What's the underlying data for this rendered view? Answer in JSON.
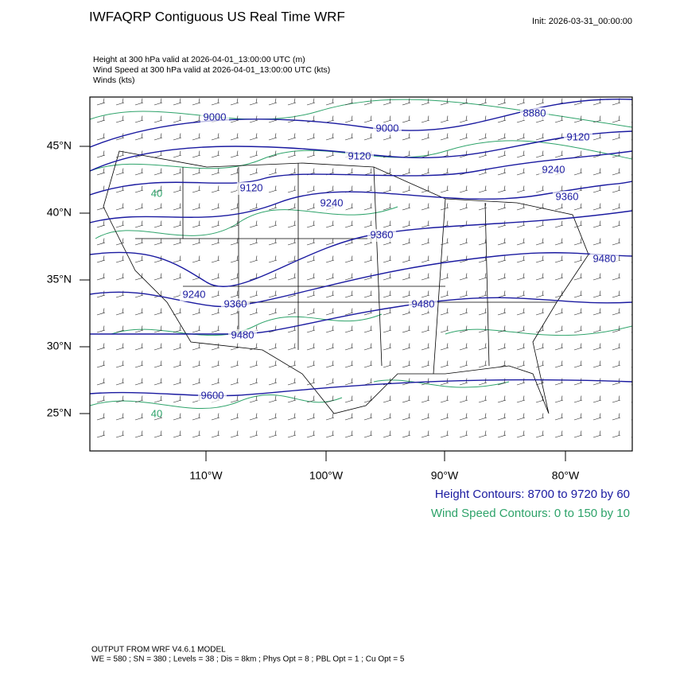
{
  "header": {
    "title": "IWFAQRP Contiguous US Real Time WRF",
    "init": "Init: 2026-03-31_00:00:00",
    "fields": [
      "Height at 300 hPa valid at 2026-04-01_13:00:00 UTC   (m)",
      "Wind Speed at 300 hPa valid at 2026-04-01_13:00:00 UTC   (kts)",
      "Winds   (kts)"
    ]
  },
  "map": {
    "lat_labels": [
      "45°N",
      "40°N",
      "35°N",
      "30°N",
      "25°N"
    ],
    "lon_labels": [
      "110°W",
      "100°W",
      "90°W",
      "80°W"
    ],
    "height_contour_labels": [
      "9000",
      "9000",
      "8880",
      "9120",
      "9120",
      "9120",
      "9240",
      "9240",
      "9360",
      "9360",
      "9480",
      "9480",
      "9240",
      "9360",
      "9480",
      "9600"
    ],
    "wind_contour_labels": [
      "40",
      "40"
    ]
  },
  "legend": {
    "height": "Height Contours: 8700 to 9720 by 60",
    "wind": "Wind Speed Contours: 0 to 150 by 10"
  },
  "footer": {
    "model": "OUTPUT FROM WRF V4.6.1 MODEL",
    "settings": "WE = 580 ; SN = 380 ; Levels = 38 ; Dis = 8km ; Phys Opt = 8 ; PBL Opt = 1 ; Cu Opt = 5"
  }
}
